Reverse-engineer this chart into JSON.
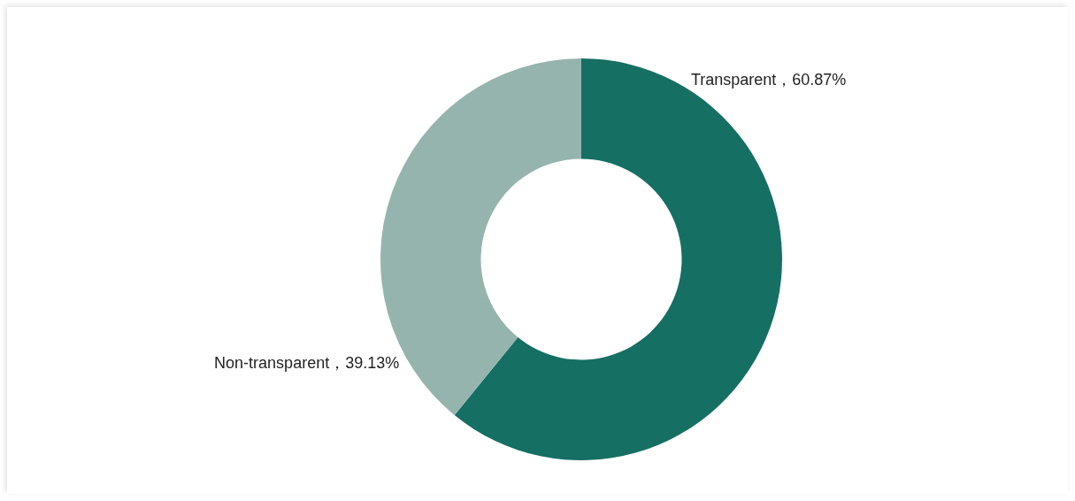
{
  "chart_data": {
    "type": "donut",
    "categories": [
      "Transparent",
      "Non-transparent"
    ],
    "values": [
      60.87,
      39.13
    ],
    "colors": [
      "#156f62",
      "#96b4ae"
    ],
    "value_labels": [
      "，60.87%",
      "，39.13%"
    ],
    "legend": false
  }
}
